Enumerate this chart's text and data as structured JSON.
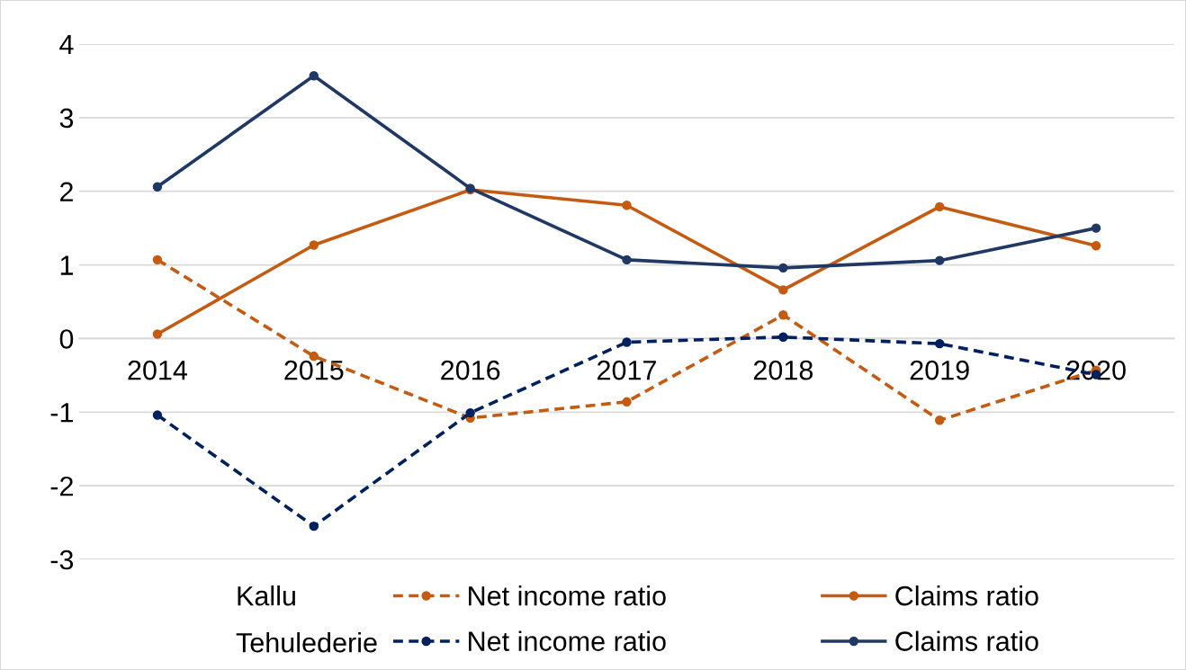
{
  "chart_data": {
    "type": "line",
    "categories": [
      "2014",
      "2015",
      "2016",
      "2017",
      "2018",
      "2019",
      "2020"
    ],
    "ylim": [
      -3,
      4
    ],
    "yticks": [
      -3,
      -2,
      -1,
      0,
      1,
      2,
      3,
      4
    ],
    "grid": "y",
    "legend": "bottom",
    "marker": "circle",
    "annotations": [
      "Kallu",
      "Tehulederie"
    ],
    "series": [
      {
        "name": "Net income ratio",
        "color": "#c55a11",
        "line_style": "dashed",
        "values": [
          1.07,
          -0.24,
          -1.08,
          -0.86,
          0.32,
          -1.11,
          -0.43
        ]
      },
      {
        "name": "Claims ratio",
        "color": "#c55a11",
        "line_style": "solid",
        "values": [
          0.06,
          1.27,
          2.02,
          1.81,
          0.66,
          1.79,
          1.26
        ]
      },
      {
        "name": "Net income ratio",
        "color": "#002060",
        "line_style": "dashed",
        "values": [
          -1.04,
          -2.55,
          -1.01,
          -0.05,
          0.02,
          -0.07,
          -0.49
        ]
      },
      {
        "name": "Claims ratio",
        "color": "#203864",
        "line_style": "solid",
        "values": [
          2.06,
          3.57,
          2.04,
          1.07,
          0.96,
          1.06,
          1.5
        ]
      }
    ]
  }
}
